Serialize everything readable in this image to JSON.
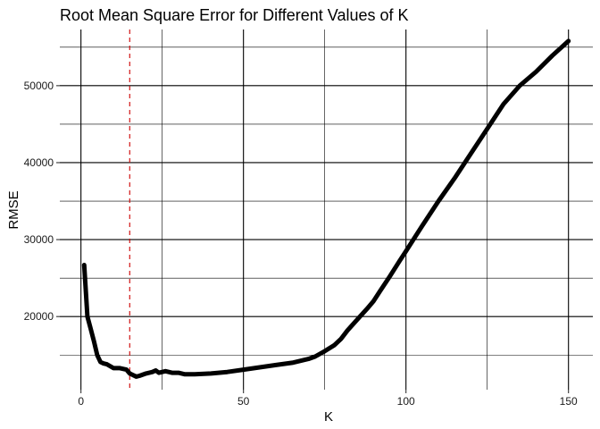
{
  "chart_data": {
    "type": "line",
    "title": "Root Mean Square Error for Different Values of K",
    "xlabel": "K",
    "ylabel": "RMSE",
    "xlim": [
      -6.5,
      157.5
    ],
    "ylim": [
      10500,
      57300
    ],
    "x_ticks": [
      0,
      50,
      100,
      150
    ],
    "x_minor_ticks": [
      25,
      75,
      125
    ],
    "y_ticks": [
      20000,
      30000,
      40000,
      50000
    ],
    "y_minor_ticks": [
      15000,
      25000,
      35000,
      45000,
      55000
    ],
    "x_tick_labels": [
      "0",
      "50",
      "100",
      "150"
    ],
    "y_tick_labels": [
      "20000",
      "30000",
      "40000",
      "50000"
    ],
    "grid": true,
    "line_color": "#000000",
    "reference_line": {
      "orientation": "vertical",
      "x": 15,
      "color": "#cc0000",
      "style": "dashed"
    },
    "series": [
      {
        "x": [
          1,
          2,
          3,
          4,
          5,
          6,
          7,
          8,
          10,
          12,
          14,
          15,
          16,
          17,
          18,
          20,
          22,
          23,
          24,
          26,
          28,
          30,
          32,
          35,
          40,
          45,
          50,
          55,
          60,
          65,
          70,
          72,
          75,
          78,
          80,
          82,
          85,
          88,
          90,
          92,
          95,
          98,
          100,
          105,
          110,
          115,
          120,
          125,
          130,
          135,
          140,
          145,
          150
        ],
        "y": [
          26700,
          20000,
          18400,
          16800,
          15000,
          14100,
          13900,
          13800,
          13300,
          13300,
          13100,
          12600,
          12400,
          12200,
          12300,
          12600,
          12800,
          13000,
          12700,
          12900,
          12700,
          12700,
          12500,
          12500,
          12600,
          12800,
          13100,
          13400,
          13700,
          14000,
          14500,
          14800,
          15500,
          16300,
          17100,
          18200,
          19600,
          21000,
          22000,
          23300,
          25200,
          27200,
          28500,
          31800,
          35000,
          38000,
          41200,
          44400,
          47600,
          50000,
          51800,
          53900,
          55800
        ]
      }
    ]
  }
}
